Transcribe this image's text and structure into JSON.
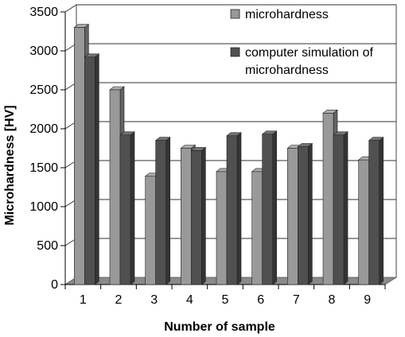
{
  "chart_data": {
    "type": "bar",
    "style": "3d-clustered-columns",
    "categories": [
      "1",
      "2",
      "3",
      "4",
      "5",
      "6",
      "7",
      "8",
      "9"
    ],
    "series": [
      {
        "name": "microhardness",
        "color": "#999999",
        "values": [
          3300,
          2500,
          1390,
          1750,
          1450,
          1450,
          1750,
          2200,
          1600
        ]
      },
      {
        "name": "computer simulation of microhardness",
        "color": "#505050",
        "values": [
          2920,
          1920,
          1850,
          1720,
          1910,
          1930,
          1770,
          1920,
          1850
        ]
      }
    ],
    "legend_lines": [
      [
        "microhardness"
      ],
      [
        "computer simulation of",
        "microhardness"
      ]
    ],
    "xlabel": "Number of sample",
    "ylabel": "Microhardness [HV]",
    "ylim": [
      0,
      3500
    ],
    "yticks": [
      0,
      500,
      1000,
      1500,
      2000,
      2500,
      3000,
      3500
    ],
    "legend_position": "top-right",
    "grid": true
  }
}
